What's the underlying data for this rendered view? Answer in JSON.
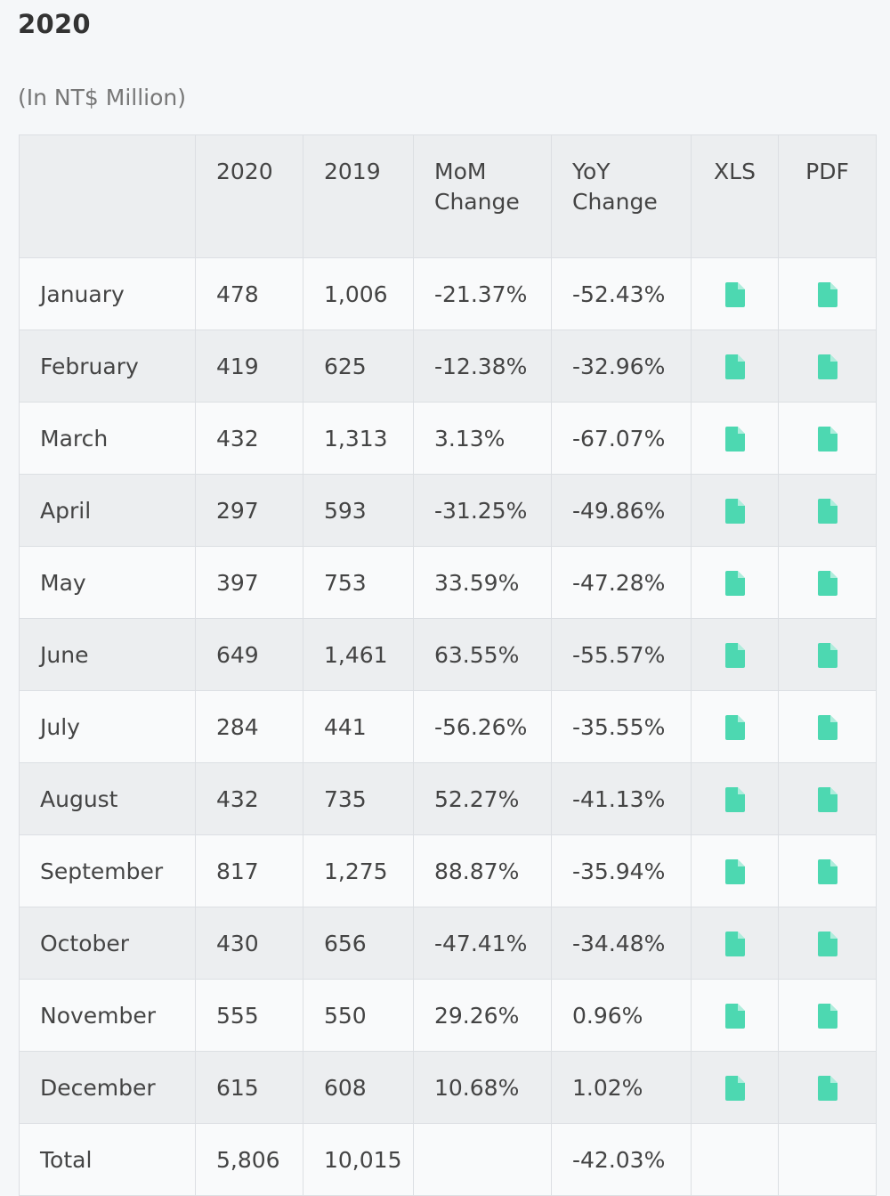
{
  "heading": "2020",
  "unit_note": "(In NT$ Million)",
  "colors": {
    "icon": "#4dd8b1"
  },
  "table": {
    "headers": [
      "",
      "2020",
      "2019",
      "MoM Change",
      "YoY Change",
      "XLS",
      "PDF"
    ],
    "rows": [
      {
        "month": "January",
        "y2020": "478",
        "y2019": "1,006",
        "mom": "-21.37%",
        "yoy": "-52.43%"
      },
      {
        "month": "February",
        "y2020": "419",
        "y2019": "625",
        "mom": "-12.38%",
        "yoy": "-32.96%"
      },
      {
        "month": "March",
        "y2020": "432",
        "y2019": "1,313",
        "mom": "3.13%",
        "yoy": "-67.07%"
      },
      {
        "month": "April",
        "y2020": "297",
        "y2019": "593",
        "mom": "-31.25%",
        "yoy": "-49.86%"
      },
      {
        "month": "May",
        "y2020": "397",
        "y2019": "753",
        "mom": "33.59%",
        "yoy": "-47.28%"
      },
      {
        "month": "June",
        "y2020": "649",
        "y2019": "1,461",
        "mom": "63.55%",
        "yoy": "-55.57%"
      },
      {
        "month": "July",
        "y2020": "284",
        "y2019": "441",
        "mom": "-56.26%",
        "yoy": "-35.55%"
      },
      {
        "month": "August",
        "y2020": "432",
        "y2019": "735",
        "mom": "52.27%",
        "yoy": "-41.13%"
      },
      {
        "month": "September",
        "y2020": "817",
        "y2019": "1,275",
        "mom": "88.87%",
        "yoy": "-35.94%"
      },
      {
        "month": "October",
        "y2020": "430",
        "y2019": "656",
        "mom": "-47.41%",
        "yoy": "-34.48%"
      },
      {
        "month": "November",
        "y2020": "555",
        "y2019": "550",
        "mom": "29.26%",
        "yoy": "0.96%"
      },
      {
        "month": "December",
        "y2020": "615",
        "y2019": "608",
        "mom": "10.68%",
        "yoy": "1.02%"
      }
    ],
    "total": {
      "label": "Total",
      "y2020": "5,806",
      "y2019": "10,015",
      "mom": "",
      "yoy": "-42.03%"
    }
  }
}
